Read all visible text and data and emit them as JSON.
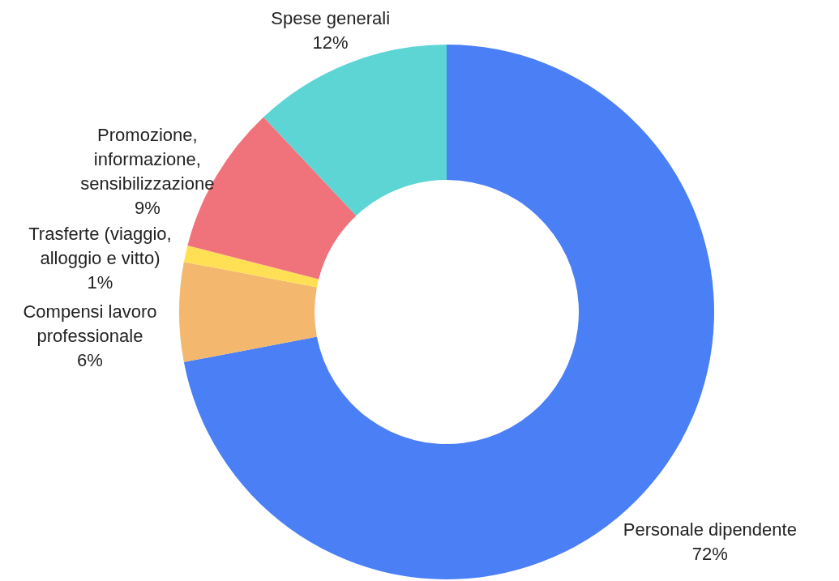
{
  "chart_data": {
    "type": "donut",
    "categories": [
      "Personale dipendente",
      "Compensi lavoro professionale",
      "Trasferte (viaggio, alloggio e vitto)",
      "Promozione, informazione, sensibilizzazione",
      "Spese generali"
    ],
    "values": [
      72,
      6,
      1,
      9,
      12
    ],
    "value_labels": [
      "72%",
      "6%",
      "1%",
      "9%",
      "12%"
    ],
    "colors": [
      "#4a7ff5",
      "#f3b76d",
      "#ffe055",
      "#f0727a",
      "#5dd5d5"
    ]
  }
}
